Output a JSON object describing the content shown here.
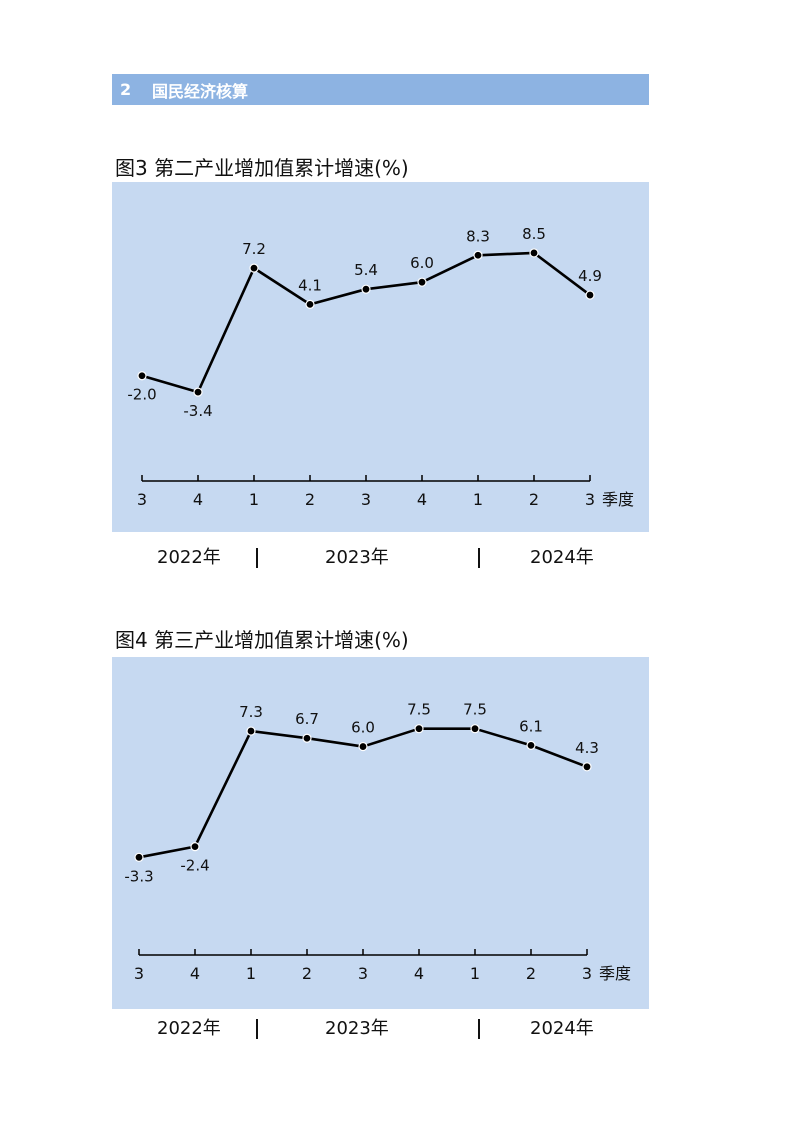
{
  "section": {
    "number": "2",
    "title": "国民经济核算"
  },
  "chart_data": [
    {
      "type": "line",
      "title": "图3  第二产业增加值累计增速(%)",
      "categories": [
        "3",
        "4",
        "1",
        "2",
        "3",
        "4",
        "1",
        "2",
        "3"
      ],
      "values": [
        -2.0,
        -3.4,
        7.2,
        4.1,
        5.4,
        6.0,
        8.3,
        8.5,
        4.9
      ],
      "value_labels": [
        "-2.0",
        "-3.4",
        "7.2",
        "4.1",
        "5.4",
        "6.0",
        "8.3",
        "8.5",
        "4.9"
      ],
      "xlabel": "季度",
      "year_labels": [
        "2022年",
        "2023年",
        "2024年"
      ],
      "ylim": [
        -11,
        12
      ],
      "grid": false,
      "line_color": "#000000",
      "background_color": "#c6d9f1"
    },
    {
      "type": "line",
      "title": "图4  第三产业增加值累计增速(%)",
      "categories": [
        "3",
        "4",
        "1",
        "2",
        "3",
        "4",
        "1",
        "2",
        "3"
      ],
      "values": [
        -3.3,
        -2.4,
        7.3,
        6.7,
        6.0,
        7.5,
        7.5,
        6.1,
        4.3
      ],
      "value_labels": [
        "-3.3",
        "-2.4",
        "7.3",
        "6.7",
        "6.0",
        "7.5",
        "7.5",
        "6.1",
        "4.3"
      ],
      "xlabel": "季度",
      "year_labels": [
        "2022年",
        "2023年",
        "2024年"
      ],
      "ylim": [
        -11.5,
        11
      ],
      "grid": false,
      "line_color": "#000000",
      "background_color": "#c6d9f1"
    }
  ]
}
